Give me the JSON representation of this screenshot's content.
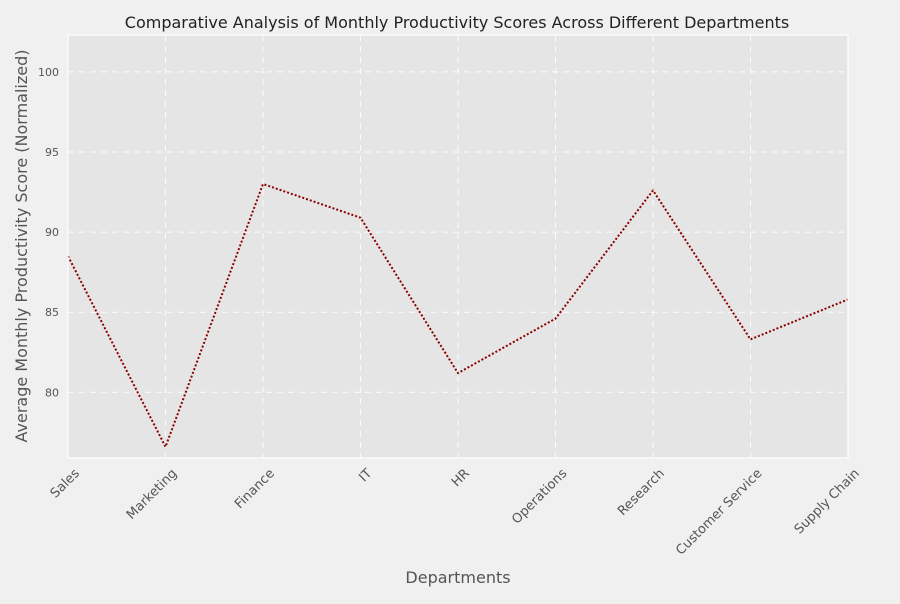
{
  "chart_data": {
    "type": "line",
    "title": "Comparative Analysis of Monthly Productivity Scores Across Different Departments",
    "xlabel": "Departments",
    "ylabel": "Average Monthly Productivity Score (Normalized)",
    "categories": [
      "Sales",
      "Marketing",
      "Finance",
      "IT",
      "HR",
      "Operations",
      "Research",
      "Customer Service",
      "Supply Chain"
    ],
    "series": [
      {
        "values": [
          88.5,
          76.6,
          93.0,
          90.9,
          81.2,
          84.6,
          92.6,
          83.3,
          85.8
        ],
        "color": "#8b0000",
        "line_style": "dotted"
      }
    ],
    "ylim": [
      75.9,
      102.3
    ],
    "yticks": [
      80,
      85,
      90,
      95,
      100
    ],
    "grid": true
  }
}
